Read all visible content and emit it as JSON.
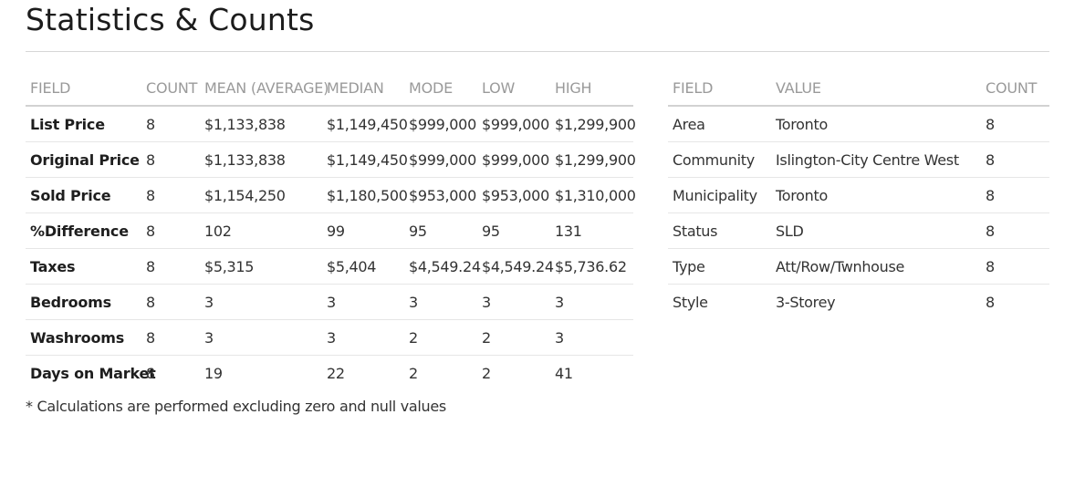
{
  "page": {
    "title": "Statistics & Counts",
    "footnote": "* Calculations are performed excluding zero and null values"
  },
  "stats_table": {
    "headers": [
      "FIELD",
      "COUNT",
      "MEAN (AVERAGE)",
      "MEDIAN",
      "MODE",
      "LOW",
      "HIGH"
    ],
    "rows": [
      [
        "List Price",
        "8",
        "$1,133,838",
        "$1,149,450",
        "$999,000",
        "$999,000",
        "$1,299,900"
      ],
      [
        "Original Price",
        "8",
        "$1,133,838",
        "$1,149,450",
        "$999,000",
        "$999,000",
        "$1,299,900"
      ],
      [
        "Sold Price",
        "8",
        "$1,154,250",
        "$1,180,500",
        "$953,000",
        "$953,000",
        "$1,310,000"
      ],
      [
        "%Difference",
        "8",
        "102",
        "99",
        "95",
        "95",
        "131"
      ],
      [
        "Taxes",
        "8",
        "$5,315",
        "$5,404",
        "$4,549.24",
        "$4,549.24",
        "$5,736.62"
      ],
      [
        "Bedrooms",
        "8",
        "3",
        "3",
        "3",
        "3",
        "3"
      ],
      [
        "Washrooms",
        "8",
        "3",
        "3",
        "2",
        "2",
        "3"
      ],
      [
        "Days on Market",
        "8",
        "19",
        "22",
        "2",
        "2",
        "41"
      ]
    ]
  },
  "counts_table": {
    "headers": [
      "FIELD",
      "VALUE",
      "COUNT"
    ],
    "rows": [
      [
        "Area",
        "Toronto",
        "8"
      ],
      [
        "Community",
        "Islington-City Centre West",
        "8"
      ],
      [
        "Municipality",
        "Toronto",
        "8"
      ],
      [
        "Status",
        "SLD",
        "8"
      ],
      [
        "Type",
        "Att/Row/Twnhouse",
        "8"
      ],
      [
        "Style",
        "3-Storey",
        "8"
      ]
    ]
  }
}
